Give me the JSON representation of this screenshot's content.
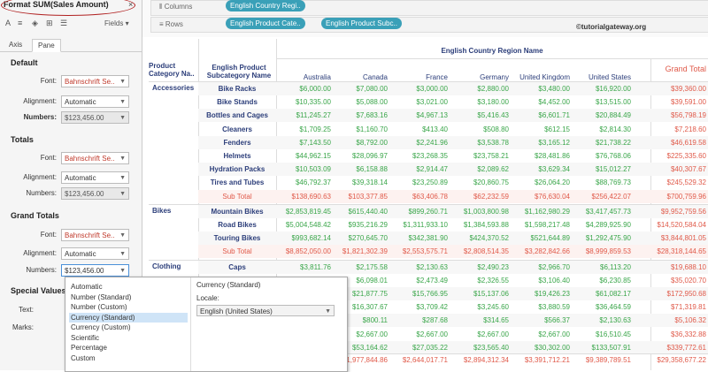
{
  "pane": {
    "title": "Format SUM(Sales Amount)",
    "close": "×",
    "fields_label": "Fields ▾",
    "tabs": [
      "Axis",
      "Pane"
    ],
    "sections": {
      "default": "Default",
      "totals": "Totals",
      "grand_totals": "Grand Totals",
      "special": "Special Values"
    },
    "labels": {
      "font": "Font:",
      "alignment": "Alignment:",
      "numbers": "Numbers:",
      "text": "Text:",
      "marks": "Marks:"
    },
    "font_value": "Bahnschrift Se..",
    "alignment_value": "Automatic",
    "numbers_value": "$123,456.00"
  },
  "shelves": {
    "columns_label": "Columns",
    "rows_label": "Rows",
    "columns_pills": [
      "English Country Regi.."
    ],
    "rows_pills": [
      "English Product Cate..",
      "English Product Subc.."
    ],
    "watermark": "©tutorialgateway.org"
  },
  "table": {
    "region_header": "English Country Region Name",
    "col1_header": "Product Category Na..",
    "col2_header": "English Product Subcategory Name",
    "countries": [
      "Australia",
      "Canada",
      "France",
      "Germany",
      "United Kingdom",
      "United States"
    ],
    "grand_total_label": "Grand Total",
    "groups": [
      {
        "category": "Accessories",
        "rows": [
          {
            "name": "Bike Racks",
            "vals": [
              "$6,000.00",
              "$7,080.00",
              "$3,000.00",
              "$2,880.00",
              "$3,480.00",
              "$16,920.00"
            ],
            "gt": "$39,360.00"
          },
          {
            "name": "Bike Stands",
            "vals": [
              "$10,335.00",
              "$5,088.00",
              "$3,021.00",
              "$3,180.00",
              "$4,452.00",
              "$13,515.00"
            ],
            "gt": "$39,591.00"
          },
          {
            "name": "Bottles and Cages",
            "vals": [
              "$11,245.27",
              "$7,683.16",
              "$4,967.13",
              "$5,416.43",
              "$6,601.71",
              "$20,884.49"
            ],
            "gt": "$56,798.19"
          },
          {
            "name": "Cleaners",
            "vals": [
              "$1,709.25",
              "$1,160.70",
              "$413.40",
              "$508.80",
              "$612.15",
              "$2,814.30"
            ],
            "gt": "$7,218.60"
          },
          {
            "name": "Fenders",
            "vals": [
              "$7,143.50",
              "$8,792.00",
              "$2,241.96",
              "$3,538.78",
              "$3,165.12",
              "$21,738.22"
            ],
            "gt": "$46,619.58"
          },
          {
            "name": "Helmets",
            "vals": [
              "$44,962.15",
              "$28,096.97",
              "$23,268.35",
              "$23,758.21",
              "$28,481.86",
              "$76,768.06"
            ],
            "gt": "$225,335.60"
          },
          {
            "name": "Hydration Packs",
            "vals": [
              "$10,503.09",
              "$6,158.88",
              "$2,914.47",
              "$2,089.62",
              "$3,629.34",
              "$15,012.27"
            ],
            "gt": "$40,307.67"
          },
          {
            "name": "Tires and Tubes",
            "vals": [
              "$46,792.37",
              "$39,318.14",
              "$23,250.89",
              "$20,860.75",
              "$26,064.20",
              "$88,769.73"
            ],
            "gt": "$245,529.32"
          }
        ],
        "subtotal": {
          "name": "Sub Total",
          "vals": [
            "$138,690.63",
            "$103,377.85",
            "$63,406.78",
            "$62,232.59",
            "$76,630.04",
            "$256,422.07"
          ],
          "gt": "$700,759.96"
        }
      },
      {
        "category": "Bikes",
        "rows": [
          {
            "name": "Mountain Bikes",
            "vals": [
              "$2,853,819.45",
              "$615,440.40",
              "$899,260.71",
              "$1,003,800.98",
              "$1,162,980.29",
              "$3,417,457.73"
            ],
            "gt": "$9,952,759.56"
          },
          {
            "name": "Road Bikes",
            "vals": [
              "$5,004,548.42",
              "$935,216.29",
              "$1,311,933.10",
              "$1,384,593.88",
              "$1,598,217.48",
              "$4,289,925.90"
            ],
            "gt": "$14,520,584.04"
          },
          {
            "name": "Touring Bikes",
            "vals": [
              "$993,682.14",
              "$270,645.70",
              "$342,381.90",
              "$424,370.52",
              "$521,644.89",
              "$1,292,475.90"
            ],
            "gt": "$3,844,801.05"
          }
        ],
        "subtotal": {
          "name": "Sub Total",
          "vals": [
            "$8,852,050.00",
            "$1,821,302.39",
            "$2,553,575.71",
            "$2,808,514.35",
            "$3,282,842.66",
            "$8,999,859.53"
          ],
          "gt": "$28,318,144.65"
        }
      },
      {
        "category": "Clothing",
        "rows": [
          {
            "name": "Caps",
            "vals": [
              "$3,811.76",
              "$2,175.58",
              "$2,130.63",
              "$2,490.23",
              "$2,966.70",
              "$6,113.20"
            ],
            "gt": "$19,688.10"
          },
          {
            "name": "",
            "vals": [
              "",
              "$6,098.01",
              "$2,473.49",
              "$2,326.55",
              "$3,106.40",
              "$6,230.85"
            ],
            "gt": "$35,020.70"
          },
          {
            "name": "",
            "vals": [
              "",
              "$21,877.75",
              "$15,766.95",
              "$15,137.06",
              "$19,426.23",
              "$61,082.17"
            ],
            "gt": "$172,950.68"
          },
          {
            "name": "",
            "vals": [
              "",
              "$16,307.67",
              "$3,709.42",
              "$3,245.60",
              "$3,880.59",
              "$36,464.59"
            ],
            "gt": "$71,319.81"
          },
          {
            "name": "",
            "vals": [
              "",
              "$800.11",
              "$287.68",
              "$314.65",
              "$566.37",
              "$2,130.63"
            ],
            "gt": "$5,106.32"
          },
          {
            "name": "",
            "vals": [
              "",
              "$2,667.00",
              "$2,667.00",
              "$2,667.00",
              "$2,667.00",
              "$16,510.45"
            ],
            "gt": "$36,332.88"
          },
          {
            "name": "",
            "vals": [
              "",
              "$53,164.62",
              "$27,035.22",
              "$23,565.40",
              "$30,302.00",
              "$133,507.91"
            ],
            "gt": "$339,772.61"
          }
        ]
      }
    ],
    "grand_row": {
      "vals": [
        "",
        "$1,977,844.86",
        "$2,644,017.71",
        "$2,894,312.34",
        "$3,391,712.21",
        "$9,389,789.51"
      ],
      "gt": "$29,358,677.22"
    }
  },
  "popup": {
    "options": [
      "Automatic",
      "Number (Standard)",
      "Number (Custom)",
      "Currency (Standard)",
      "Currency (Custom)",
      "Scientific",
      "Percentage",
      "Custom"
    ],
    "selected_index": 3,
    "detail_title": "Currency (Standard)",
    "locale_label": "Locale:",
    "locale_value": "English (United States)"
  }
}
